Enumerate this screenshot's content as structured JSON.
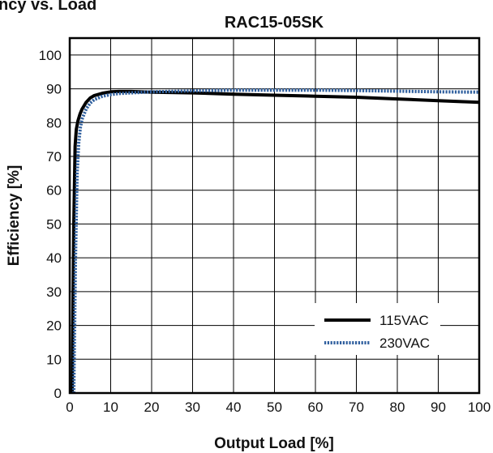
{
  "page": {
    "header_text": "Efficiency vs. Load"
  },
  "chart_data": {
    "type": "line",
    "title": "RAC15-05SK",
    "xlabel": "Output Load [%]",
    "ylabel": "Efficiency [%]",
    "xlim": [
      0,
      100
    ],
    "ylim": [
      0,
      105
    ],
    "xticks": [
      0,
      10,
      20,
      30,
      40,
      50,
      60,
      70,
      80,
      90,
      100
    ],
    "yticks": [
      0,
      10,
      20,
      30,
      40,
      50,
      60,
      70,
      80,
      90,
      100
    ],
    "grid": true,
    "legend_position": "bottom-right",
    "series": [
      {
        "name": "115VAC",
        "color": "#000000",
        "style": "solid",
        "x": [
          0.6,
          1.0,
          1.3,
          1.6,
          2.0,
          2.5,
          3,
          4,
          5,
          6,
          8,
          10,
          12,
          15,
          20,
          30,
          40,
          50,
          60,
          70,
          80,
          90,
          100
        ],
        "y": [
          0,
          50,
          73,
          78,
          80.5,
          82.5,
          84,
          86,
          87.3,
          88,
          88.7,
          89.1,
          89.2,
          89.2,
          89,
          88.8,
          88.4,
          88.1,
          87.8,
          87.5,
          87,
          86.5,
          86
        ]
      },
      {
        "name": "230VAC",
        "color": "#2f5f9e",
        "style": "dotted",
        "x": [
          1.0,
          1.4,
          1.8,
          2.2,
          2.6,
          3,
          4,
          5,
          6,
          8,
          10,
          12,
          15,
          20,
          30,
          40,
          50,
          60,
          70,
          80,
          90,
          100
        ],
        "y": [
          0,
          40,
          65,
          74,
          78.5,
          81,
          84,
          85.8,
          86.8,
          87.8,
          88.3,
          88.6,
          88.8,
          89.1,
          89.4,
          89.6,
          89.6,
          89.6,
          89.5,
          89.3,
          89.1,
          89
        ]
      }
    ]
  }
}
